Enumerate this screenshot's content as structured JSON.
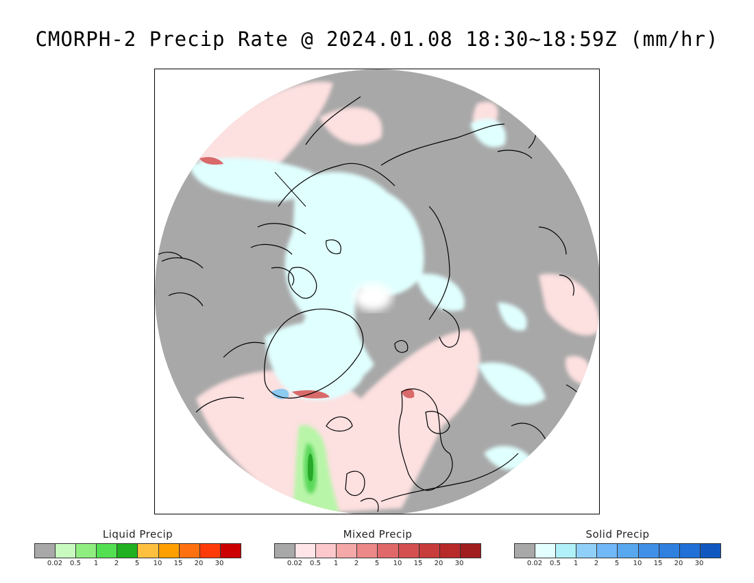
{
  "title": "CMORPH-2 Precip Rate @ 2024.01.08 18:30~18:59Z (mm/hr)",
  "colors": {
    "no_precip": "#a8a8a8",
    "land_outline": "#000000",
    "mixed_light": "#fde0e0",
    "solid_light": "#e0ffff",
    "solid_white": "#ffffff",
    "liquid_light": "#b8f5a8",
    "liquid_mid": "#5ad85a",
    "liquid_dark": "#28a828",
    "mixed_dark": "#d96a6a",
    "solid_mid": "#8ccaf0"
  },
  "legends": [
    {
      "id": "liquid",
      "title": "Liquid Precip",
      "colors": [
        "#a8a8a8",
        "#c8fac0",
        "#90ee80",
        "#52e052",
        "#20b020",
        "#ffc040",
        "#ffa000",
        "#ff7010",
        "#ff3a0a",
        "#cc0000"
      ],
      "ticks": [
        "0.02",
        "0.5",
        "1",
        "2",
        "5",
        "10",
        "15",
        "20",
        "30"
      ]
    },
    {
      "id": "mixed",
      "title": "Mixed Precip",
      "colors": [
        "#a8a8a8",
        "#ffe4e8",
        "#fcc8cc",
        "#f4a8a8",
        "#ec8888",
        "#e06868",
        "#d45050",
        "#c83c3c",
        "#b82a2a",
        "#a01e1e"
      ],
      "ticks": [
        "0.02",
        "0.5",
        "1",
        "2",
        "5",
        "10",
        "15",
        "20",
        "30"
      ]
    },
    {
      "id": "solid",
      "title": "Solid Precip",
      "colors": [
        "#a8a8a8",
        "#e4ffff",
        "#b0f0f8",
        "#90d0f8",
        "#70b8f8",
        "#58a8f0",
        "#4090e8",
        "#3080e0",
        "#2070d8",
        "#1058c0"
      ],
      "ticks": [
        "0.02",
        "0.5",
        "1",
        "2",
        "5",
        "10",
        "15",
        "20",
        "30"
      ]
    }
  ]
}
